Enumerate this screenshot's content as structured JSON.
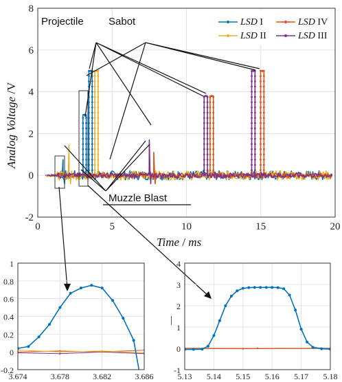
{
  "chart_data": [
    {
      "type": "line",
      "xlabel_main": "Time",
      "xlabel_unit": "ms",
      "xlabel_sep": "/",
      "ylabel_main": "Analog Voltage",
      "ylabel_unit": "V",
      "ylabel_sep": "/",
      "xlim": [
        0,
        20
      ],
      "ylim": [
        -2,
        8
      ],
      "xticks": [
        "0",
        "5",
        "10",
        "15",
        "20"
      ],
      "yticks": [
        "-2",
        "0",
        "2",
        "4",
        "6",
        "8"
      ],
      "grid": true,
      "legend": [
        {
          "italic": "LSD",
          "roman": " I",
          "color": "#0072bd"
        },
        {
          "italic": "LSD",
          "roman": " IV",
          "color": "#d95319"
        },
        {
          "italic": "LSD",
          "roman": " II",
          "color": "#edb120"
        },
        {
          "italic": "LSD",
          "roman": " III",
          "color": "#7e2f8e"
        }
      ],
      "annotations": {
        "projectile": "Projectile",
        "sabot": "Sabot",
        "muzzle": "Muzzle Blast"
      },
      "series": [
        {
          "color": "#0072bd",
          "blast": [
            1.7,
            0.75
          ],
          "pulses": [
            [
              3.15,
              2.9
            ],
            [
              3.55,
              5.0
            ]
          ]
        },
        {
          "color": "#edb120",
          "blast": [
            2.1,
            1.45
          ],
          "pulses": [
            [
              3.95,
              5.0
            ]
          ]
        },
        {
          "color": "#d95319",
          "blast": [
            7.8,
            1.1
          ],
          "pulses": [
            [
              11.7,
              3.8
            ],
            [
              15.1,
              5.0
            ]
          ]
        },
        {
          "color": "#7e2f8e",
          "blast": [
            7.5,
            1.7
          ],
          "pulses": [
            [
              11.3,
              3.8
            ],
            [
              14.5,
              5.0
            ]
          ]
        }
      ]
    },
    {
      "type": "line",
      "xlim": [
        3.674,
        3.686
      ],
      "ylim": [
        -0.2,
        1.0
      ],
      "xticks": [
        "3.674",
        "3.678",
        "3.682",
        "3.686"
      ],
      "yticks": [
        "-0.2",
        "0",
        "0.2",
        "0.4",
        "0.6",
        "0.8",
        "1"
      ],
      "grid": true,
      "series": [
        {
          "color": "#0072bd",
          "x": [
            3.674,
            3.675,
            3.676,
            3.677,
            3.678,
            3.679,
            3.68,
            3.681,
            3.682,
            3.683,
            3.684,
            3.685
          ],
          "y": [
            0.04,
            0.06,
            0.17,
            0.31,
            0.5,
            0.66,
            0.72,
            0.75,
            0.72,
            0.58,
            0.38,
            0.13
          ]
        },
        {
          "color": "#edb120",
          "x": [
            3.674,
            3.678,
            3.682,
            3.686
          ],
          "y": [
            0.02,
            0.0,
            0.01,
            -0.01
          ]
        },
        {
          "color": "#d95319",
          "x": [
            3.674,
            3.678,
            3.682,
            3.686
          ],
          "y": [
            0.0,
            0.01,
            0.0,
            0.02
          ]
        },
        {
          "color": "#7e2f8e",
          "x": [
            3.674,
            3.678,
            3.682,
            3.686
          ],
          "y": [
            -0.01,
            -0.02,
            0.0,
            -0.02
          ]
        }
      ]
    },
    {
      "type": "line",
      "ylabel": "|",
      "xlim": [
        5.13,
        5.18
      ],
      "ylim": [
        -1,
        4
      ],
      "xticks": [
        "5.13",
        "5.14",
        "5.15",
        "5.16",
        "5.17",
        "5.18"
      ],
      "yticks": [
        "-1",
        "0",
        "1",
        "2",
        "3",
        "4"
      ],
      "grid": true,
      "series": [
        {
          "color": "#0072bd",
          "x": [
            5.13,
            5.133,
            5.136,
            5.138,
            5.14,
            5.142,
            5.144,
            5.146,
            5.148,
            5.15,
            5.152,
            5.154,
            5.156,
            5.158,
            5.16,
            5.162,
            5.164,
            5.166,
            5.168,
            5.17,
            5.172,
            5.174,
            5.177,
            5.18
          ],
          "y": [
            -0.05,
            -0.05,
            -0.04,
            0.1,
            0.6,
            1.3,
            2.0,
            2.45,
            2.7,
            2.82,
            2.85,
            2.86,
            2.86,
            2.86,
            2.86,
            2.85,
            2.8,
            2.5,
            1.8,
            0.9,
            0.3,
            0.05,
            -0.02,
            -0.04
          ]
        },
        {
          "color": "#d95319",
          "x": [
            5.13,
            5.15,
            5.18
          ],
          "y": [
            -0.01,
            -0.02,
            -0.01
          ]
        },
        {
          "color": "#edb120",
          "x": [
            5.13,
            5.16,
            5.18
          ],
          "y": [
            0.0,
            -0.01,
            0.0
          ]
        },
        {
          "color": "#7e2f8e",
          "x": [
            5.13,
            5.155,
            5.18
          ],
          "y": [
            0.01,
            0.0,
            0.01
          ]
        }
      ]
    }
  ]
}
